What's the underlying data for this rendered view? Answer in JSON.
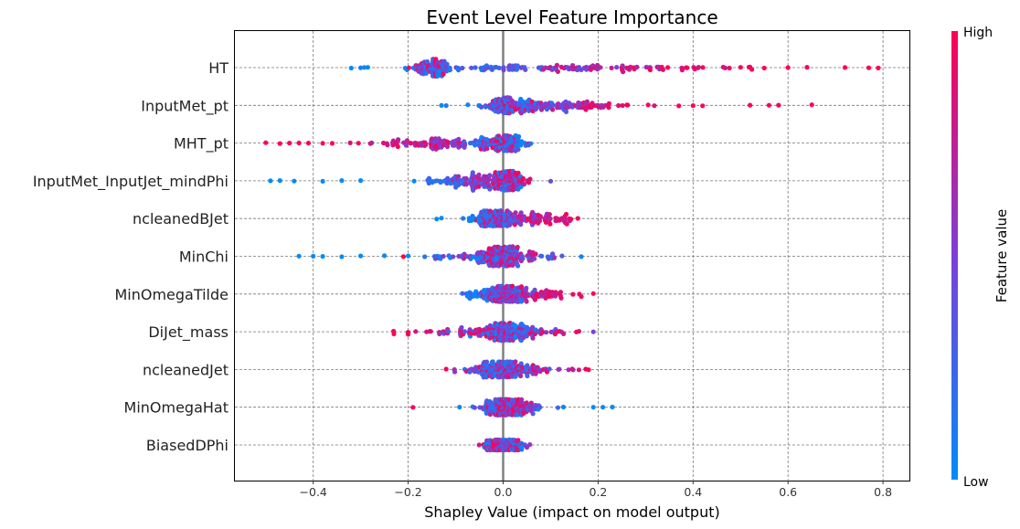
{
  "chart_data": {
    "type": "scatter",
    "subtype": "beeswarm",
    "title": "Event Level Feature Importance",
    "xlabel": "Shapley Value (impact on model output)",
    "ylabel": "",
    "xlim": [
      -0.56,
      0.855
    ],
    "xticks": [
      -0.4,
      -0.2,
      0.0,
      0.2,
      0.4,
      0.6,
      0.8
    ],
    "xtick_labels": [
      "−0.4",
      "−0.2",
      "0.0",
      "0.2",
      "0.4",
      "0.6",
      "0.8"
    ],
    "grid": true,
    "colorbar": {
      "title": "Feature value",
      "high_label": "High",
      "low_label": "Low",
      "low_color": "#008bfb",
      "mid_color": "#7d3fd8",
      "high_color": "#ff0052"
    },
    "features": [
      {
        "name": "HT",
        "low_range": [
          -0.32,
          -0.05
        ],
        "high_range": [
          0.15,
          0.65
        ],
        "center": -0.15,
        "spread": 9,
        "outliers": [
          {
            "v": -0.32,
            "c": 0.0
          },
          {
            "v": -0.3,
            "c": 0.1
          },
          {
            "v": -0.285,
            "c": 0.0
          },
          {
            "v": 0.5,
            "c": 1.0
          },
          {
            "v": 0.52,
            "c": 1.0
          },
          {
            "v": 0.55,
            "c": 1.0
          },
          {
            "v": 0.6,
            "c": 1.0
          },
          {
            "v": 0.64,
            "c": 1.0
          },
          {
            "v": 0.72,
            "c": 1.0
          },
          {
            "v": 0.77,
            "c": 1.0
          },
          {
            "v": 0.79,
            "c": 1.0
          }
        ]
      },
      {
        "name": "InputMet_pt",
        "low_range": [
          -0.1,
          0.05
        ],
        "high_range": [
          0.08,
          0.35
        ],
        "center": 0.0,
        "spread": 8,
        "outliers": [
          {
            "v": -0.13,
            "c": 0.0
          },
          {
            "v": -0.12,
            "c": 0.1
          },
          {
            "v": 0.37,
            "c": 1.0
          },
          {
            "v": 0.4,
            "c": 1.0
          },
          {
            "v": 0.42,
            "c": 1.0
          },
          {
            "v": 0.52,
            "c": 1.0
          },
          {
            "v": 0.56,
            "c": 1.0
          },
          {
            "v": 0.58,
            "c": 1.0
          },
          {
            "v": 0.65,
            "c": 1.0
          }
        ]
      },
      {
        "name": "MHT_pt",
        "low_range": [
          -0.05,
          0.06
        ],
        "high_range": [
          -0.35,
          -0.05
        ],
        "center": 0.0,
        "spread": 8,
        "outliers": [
          {
            "v": -0.5,
            "c": 1.0
          },
          {
            "v": -0.47,
            "c": 1.0
          },
          {
            "v": -0.45,
            "c": 1.0
          },
          {
            "v": -0.43,
            "c": 1.0
          },
          {
            "v": -0.41,
            "c": 1.0
          },
          {
            "v": -0.38,
            "c": 1.0
          },
          {
            "v": -0.36,
            "c": 1.0
          }
        ]
      },
      {
        "name": "InputMet_InputJet_mindPhi",
        "low_range": [
          -0.25,
          -0.02
        ],
        "high_range": [
          -0.03,
          0.08
        ],
        "center": 0.01,
        "spread": 10,
        "outliers": [
          {
            "v": -0.49,
            "c": 0.0
          },
          {
            "v": -0.47,
            "c": 0.0
          },
          {
            "v": -0.44,
            "c": 0.0
          },
          {
            "v": -0.38,
            "c": 0.0
          },
          {
            "v": -0.34,
            "c": 0.0
          },
          {
            "v": -0.3,
            "c": 0.0
          },
          {
            "v": 0.1,
            "c": 0.4
          }
        ]
      },
      {
        "name": "ncleanedBJet",
        "low_range": [
          -0.1,
          0.0
        ],
        "high_range": [
          0.02,
          0.19
        ],
        "center": -0.02,
        "spread": 8,
        "outliers": [
          {
            "v": -0.14,
            "c": 0.0
          },
          {
            "v": -0.13,
            "c": 0.0
          }
        ]
      },
      {
        "name": "MinChi",
        "low_range": [
          -0.2,
          0.18
        ],
        "high_range": [
          -0.05,
          0.05
        ],
        "center": -0.01,
        "spread": 10,
        "outliers": [
          {
            "v": -0.43,
            "c": 0.0
          },
          {
            "v": -0.4,
            "c": 0.0
          },
          {
            "v": -0.38,
            "c": 0.0
          },
          {
            "v": -0.34,
            "c": 0.0
          },
          {
            "v": -0.3,
            "c": 0.0
          },
          {
            "v": -0.25,
            "c": 0.0
          },
          {
            "v": -0.21,
            "c": 1.0
          },
          {
            "v": -0.2,
            "c": 0.0
          }
        ]
      },
      {
        "name": "MinOmegaTilde",
        "low_range": [
          -0.1,
          0.0
        ],
        "high_range": [
          0.0,
          0.19
        ],
        "center": 0.0,
        "spread": 8,
        "outliers": [
          {
            "v": 0.19,
            "c": 1.0
          }
        ]
      },
      {
        "name": "DiJet_mass",
        "low_range": [
          -0.05,
          0.07
        ],
        "high_range": [
          -0.23,
          0.16
        ],
        "center": 0.0,
        "spread": 9,
        "outliers": [
          {
            "v": -0.23,
            "c": 1.0
          },
          {
            "v": -0.2,
            "c": 1.0
          },
          {
            "v": 0.19,
            "c": 0.5
          }
        ]
      },
      {
        "name": "ncleanedJet",
        "low_range": [
          -0.08,
          0.05
        ],
        "high_range": [
          -0.1,
          0.17
        ],
        "center": 0.0,
        "spread": 8,
        "outliers": [
          {
            "v": -0.12,
            "c": 1.0
          },
          {
            "v": 0.18,
            "c": 1.0
          }
        ]
      },
      {
        "name": "MinOmegaHat",
        "low_range": [
          -0.1,
          0.12
        ],
        "high_range": [
          -0.03,
          0.05
        ],
        "center": 0.0,
        "spread": 8,
        "outliers": [
          {
            "v": -0.19,
            "c": 1.0
          },
          {
            "v": 0.19,
            "c": 0.0
          },
          {
            "v": 0.21,
            "c": 0.0
          },
          {
            "v": 0.23,
            "c": 0.0
          }
        ]
      },
      {
        "name": "BiasedDPhi",
        "low_range": [
          -0.02,
          0.03
        ],
        "high_range": [
          -0.03,
          0.02
        ],
        "center": 0.0,
        "spread": 5,
        "outliers": [
          {
            "v": 0.04,
            "c": 0.0
          }
        ]
      }
    ]
  }
}
